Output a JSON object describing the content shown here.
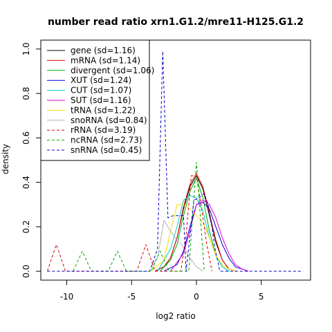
{
  "chart_data": {
    "type": "line",
    "title": "number read ratio xrn1.G1.2/mre11-H125.G1.2",
    "xlabel": "log2 ratio",
    "ylabel": "density",
    "xlim": [
      -12.0,
      8.8
    ],
    "ylim": [
      -0.04,
      1.04
    ],
    "x_ticks": [
      -10,
      -5,
      0,
      5
    ],
    "y_ticks": [
      0.0,
      0.2,
      0.4,
      0.6,
      0.8,
      1.0
    ],
    "grid": false,
    "legend_position": "top-left",
    "series": [
      {
        "name": "gene (sd=1.16)",
        "color": "#000000",
        "dash": "solid",
        "x": [
          -3.2,
          -2.5,
          -2,
          -1.5,
          -1,
          -0.5,
          0,
          0.5,
          1,
          1.5,
          2,
          2.5,
          3
        ],
        "y": [
          0.0,
          0.02,
          0.06,
          0.15,
          0.28,
          0.38,
          0.43,
          0.37,
          0.25,
          0.13,
          0.05,
          0.01,
          0.0
        ]
      },
      {
        "name": "mRNA (sd=1.14)",
        "color": "#dd0000",
        "dash": "solid",
        "x": [
          -3.2,
          -2.5,
          -2,
          -1.5,
          -1,
          -0.5,
          0,
          0.5,
          1,
          1.5,
          2,
          2.5,
          3
        ],
        "y": [
          0.0,
          0.02,
          0.06,
          0.15,
          0.29,
          0.39,
          0.44,
          0.38,
          0.26,
          0.14,
          0.05,
          0.01,
          0.0
        ]
      },
      {
        "name": "divergent (sd=1.06)",
        "color": "#00aa00",
        "dash": "solid",
        "x": [
          -2.8,
          -2,
          -1.5,
          -1,
          -0.5,
          0,
          0.5,
          1,
          1.5,
          2,
          2.5
        ],
        "y": [
          0.0,
          0.05,
          0.12,
          0.25,
          0.36,
          0.42,
          0.33,
          0.18,
          0.07,
          0.02,
          0.0
        ]
      },
      {
        "name": "XUT (sd=1.24)",
        "color": "#0000cc",
        "dash": "solid",
        "x": [
          -2.5,
          -1.5,
          -1,
          -0.5,
          0,
          0.5,
          1,
          1.5,
          2,
          2.5,
          3,
          3.5,
          4
        ],
        "y": [
          0.0,
          0.03,
          0.09,
          0.2,
          0.3,
          0.31,
          0.28,
          0.2,
          0.12,
          0.06,
          0.02,
          0.01,
          0.0
        ]
      },
      {
        "name": "CUT (sd=1.07)",
        "color": "#00cccc",
        "dash": "solid",
        "x": [
          -3,
          -2,
          -1.5,
          -1,
          -0.5,
          0,
          0.5,
          1,
          1.5,
          2,
          2.5
        ],
        "y": [
          0.0,
          0.1,
          0.2,
          0.32,
          0.34,
          0.33,
          0.27,
          0.15,
          0.07,
          0.02,
          0.0
        ]
      },
      {
        "name": "SUT (sd=1.16)",
        "color": "#dd00dd",
        "dash": "solid",
        "x": [
          -2,
          -1,
          -0.5,
          0,
          0.5,
          1,
          1.5,
          2,
          2.5,
          3,
          3.5,
          4
        ],
        "y": [
          0.0,
          0.08,
          0.18,
          0.3,
          0.32,
          0.3,
          0.24,
          0.15,
          0.08,
          0.03,
          0.01,
          0.0
        ]
      },
      {
        "name": "tRNA (sd=1.22)",
        "color": "#ffdd00",
        "dash": "solid",
        "x": [
          -3.5,
          -2.5,
          -2,
          -1.5,
          -1,
          -0.5,
          0,
          0.5,
          1,
          1.5,
          2,
          2.5,
          3
        ],
        "y": [
          0.0,
          0.05,
          0.18,
          0.3,
          0.3,
          0.28,
          0.25,
          0.22,
          0.15,
          0.07,
          0.03,
          0.01,
          0.0
        ]
      },
      {
        "name": "snoRNA (sd=0.84)",
        "color": "#b0b0b0",
        "dash": "solid",
        "x": [
          -3.5,
          -3,
          -2.5,
          -2,
          -1.5,
          -1,
          -0.5,
          0,
          0.5
        ],
        "y": [
          0.02,
          0.06,
          0.23,
          0.18,
          0.14,
          0.11,
          0.06,
          0.02,
          0.0
        ]
      },
      {
        "name": "rRNA (sd=3.19)",
        "color": "#dd0000",
        "dash": "dashed",
        "x": [
          -11.5,
          -10.8,
          -10.1,
          -4.6,
          -3.9,
          -3.2,
          -1.2,
          -0.8,
          -0.4,
          0,
          0.4,
          0.8,
          1.2
        ],
        "y": [
          0.0,
          0.12,
          0.0,
          0.0,
          0.12,
          0.0,
          0.0,
          0.16,
          0.43,
          0.43,
          0.28,
          0.12,
          0.0
        ]
      },
      {
        "name": "ncRNA (sd=2.73)",
        "color": "#00aa00",
        "dash": "dashed",
        "x": [
          -9.5,
          -8.8,
          -8.1,
          -6.8,
          -6.1,
          -5.4,
          -3.5,
          -2.8,
          -2.1,
          -0.6,
          0,
          0.6
        ],
        "y": [
          0.0,
          0.09,
          0.0,
          0.0,
          0.09,
          0.0,
          0.0,
          0.09,
          0.0,
          0.0,
          0.49,
          0.0
        ]
      },
      {
        "name": "snRNA (sd=0.45)",
        "color": "#0000cc",
        "dash": "dashed",
        "x": [
          -11.5,
          -3.6,
          -3,
          -2.6,
          -2.2,
          -1.8,
          -1,
          -0.8,
          -0.2,
          0.2,
          0.6,
          0.9,
          1.2,
          1.4,
          1.8,
          8.2
        ],
        "y": [
          0.0,
          0.0,
          0.1,
          0.99,
          0.24,
          0.25,
          0.25,
          0.0,
          0.32,
          0.33,
          0.35,
          0.3,
          0.2,
          0.11,
          0.0,
          0.0
        ]
      }
    ]
  }
}
